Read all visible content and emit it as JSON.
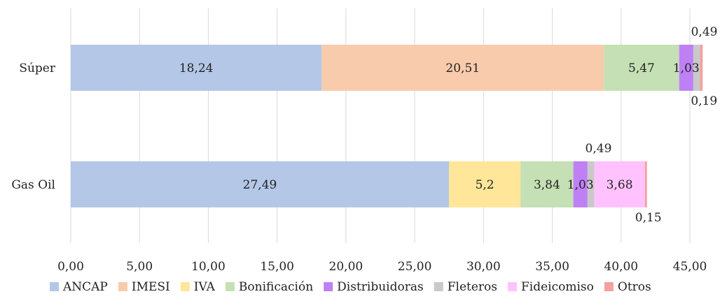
{
  "chart_data": {
    "type": "bar",
    "orientation": "horizontal",
    "stacked": true,
    "title": "",
    "xlabel": "",
    "ylabel": "",
    "xlim": [
      0,
      45
    ],
    "grid": "vertical",
    "legend_position": "bottom",
    "categories": [
      "Súper",
      "Gas Oil"
    ],
    "x_ticks": [
      "0,00",
      "5,00",
      "10,00",
      "15,00",
      "20,00",
      "25,00",
      "30,00",
      "35,00",
      "40,00",
      "45,00"
    ],
    "series": [
      {
        "name": "ANCAP",
        "color": "#b4c7e7",
        "values": [
          18.24,
          27.49
        ],
        "labels": [
          "18,24",
          "27,49"
        ]
      },
      {
        "name": "IMESI",
        "color": "#f8cbad",
        "values": [
          20.51,
          0
        ],
        "labels": [
          "20,51",
          ""
        ]
      },
      {
        "name": "IVA",
        "color": "#ffe699",
        "values": [
          0,
          5.2
        ],
        "labels": [
          "",
          "5,2"
        ]
      },
      {
        "name": "Bonificación",
        "color": "#c5e0b4",
        "values": [
          5.47,
          3.84
        ],
        "labels": [
          "5,47",
          "3,84"
        ]
      },
      {
        "name": "Distribuidoras",
        "color": "#bf80f5",
        "values": [
          1.03,
          1.03
        ],
        "labels": [
          "1,03",
          "1,03"
        ]
      },
      {
        "name": "Fleteros",
        "color": "#c9c9c9",
        "values": [
          0.49,
          0.49
        ],
        "labels": [
          "0,49",
          "0,49"
        ]
      },
      {
        "name": "Fideicomiso",
        "color": "#ffc2ff",
        "values": [
          0,
          3.68
        ],
        "labels": [
          "",
          "3,68"
        ]
      },
      {
        "name": "Otros",
        "color": "#f4a0a0",
        "values": [
          0.19,
          0.15
        ],
        "labels": [
          "0,19",
          "0,15"
        ]
      }
    ]
  }
}
